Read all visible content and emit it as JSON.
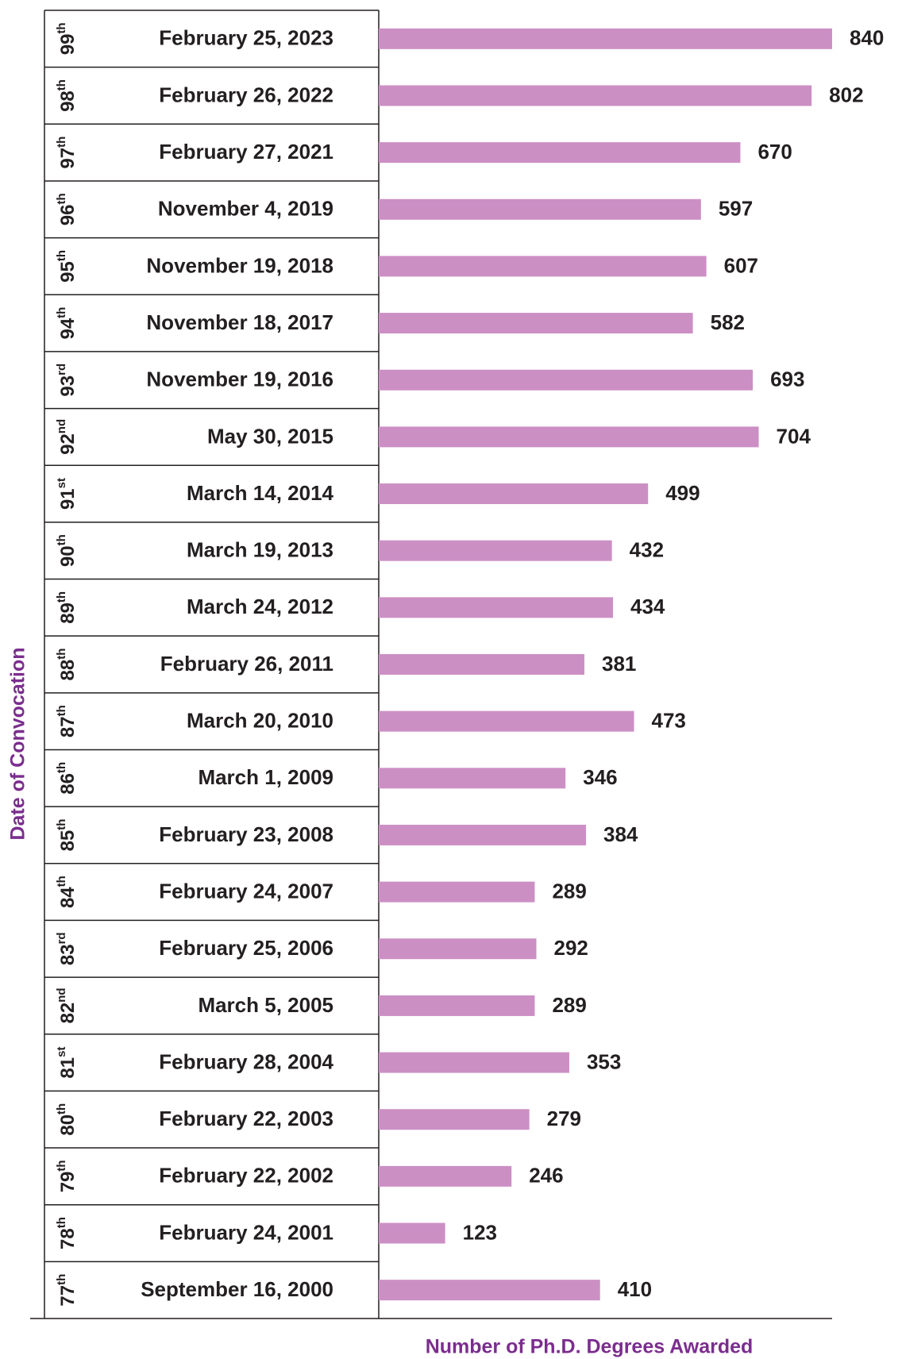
{
  "chart_data": {
    "type": "bar",
    "orientation": "horizontal",
    "x_label": "Number of  Ph.D. Degrees Awarded",
    "y_label": "Date of Convocation",
    "categories": [
      "February 25, 2023",
      "February 26, 2022",
      "February 27, 2021",
      "November 4, 2019",
      "November 19, 2018",
      "November 18, 2017",
      "November 19, 2016",
      "May 30, 2015",
      "March 14, 2014",
      "March 19, 2013",
      "March 24, 2012",
      "February 26, 2011",
      "March 20, 2010",
      "March 1, 2009",
      "February 23, 2008",
      "February 24, 2007",
      "February 25, 2006",
      "March 5, 2005",
      "February 28, 2004",
      "February 22, 2003",
      "February 22, 2002",
      "February 24, 2001",
      "September 16, 2000"
    ],
    "convocations": [
      {
        "number": 99,
        "suffix": "th"
      },
      {
        "number": 98,
        "suffix": "th"
      },
      {
        "number": 97,
        "suffix": "th"
      },
      {
        "number": 96,
        "suffix": "th"
      },
      {
        "number": 95,
        "suffix": "th"
      },
      {
        "number": 94,
        "suffix": "th"
      },
      {
        "number": 93,
        "suffix": "rd"
      },
      {
        "number": 92,
        "suffix": "nd"
      },
      {
        "number": 91,
        "suffix": "st"
      },
      {
        "number": 90,
        "suffix": "th"
      },
      {
        "number": 89,
        "suffix": "th"
      },
      {
        "number": 88,
        "suffix": "th"
      },
      {
        "number": 87,
        "suffix": "th"
      },
      {
        "number": 86,
        "suffix": "th"
      },
      {
        "number": 85,
        "suffix": "th"
      },
      {
        "number": 84,
        "suffix": "th"
      },
      {
        "number": 83,
        "suffix": "rd"
      },
      {
        "number": 82,
        "suffix": "nd"
      },
      {
        "number": 81,
        "suffix": "st"
      },
      {
        "number": 80,
        "suffix": "th"
      },
      {
        "number": 79,
        "suffix": "th"
      },
      {
        "number": 78,
        "suffix": "th"
      },
      {
        "number": 77,
        "suffix": "th"
      }
    ],
    "values": [
      840,
      802,
      670,
      597,
      607,
      582,
      693,
      704,
      499,
      432,
      434,
      381,
      473,
      346,
      384,
      289,
      292,
      289,
      353,
      279,
      246,
      123,
      410
    ],
    "color": "#cc8fc4",
    "title_color": "#7b2d8e",
    "xlim": [
      0,
      840
    ]
  }
}
